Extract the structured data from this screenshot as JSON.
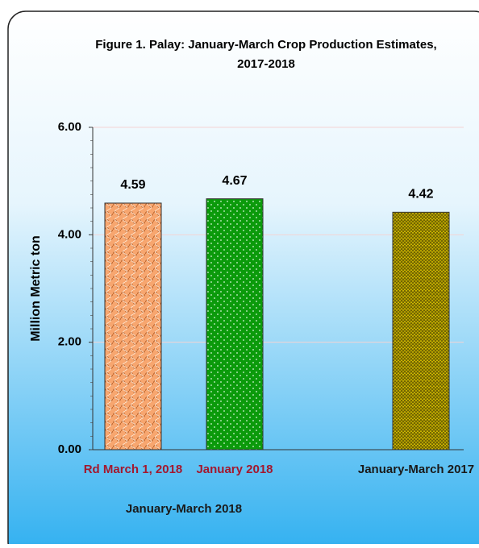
{
  "chart_data": {
    "type": "bar",
    "title": [
      "Figure 1. Palay:  January-March Crop Production Estimates,",
      "2017-2018"
    ],
    "y_axis_label": "Million Metric ton",
    "categories": [
      "Rd March 1, 2018",
      "January 2018",
      "January-March 2017"
    ],
    "category_label_colors": [
      "#a3182e",
      "#a3182e",
      "#1a1a1a"
    ],
    "group_label": "January-March 2018",
    "values": [
      4.59,
      4.67,
      4.42
    ],
    "colors": [
      "#f7a66f",
      "#0b9a0b",
      "#c9b300"
    ],
    "ylim": [
      0,
      6
    ],
    "yticks": [
      {
        "value": 0,
        "label": "0.00"
      },
      {
        "value": 2,
        "label": "2.00"
      },
      {
        "value": 4,
        "label": "4.00"
      },
      {
        "value": 6,
        "label": "6.00"
      }
    ],
    "grid": true
  }
}
